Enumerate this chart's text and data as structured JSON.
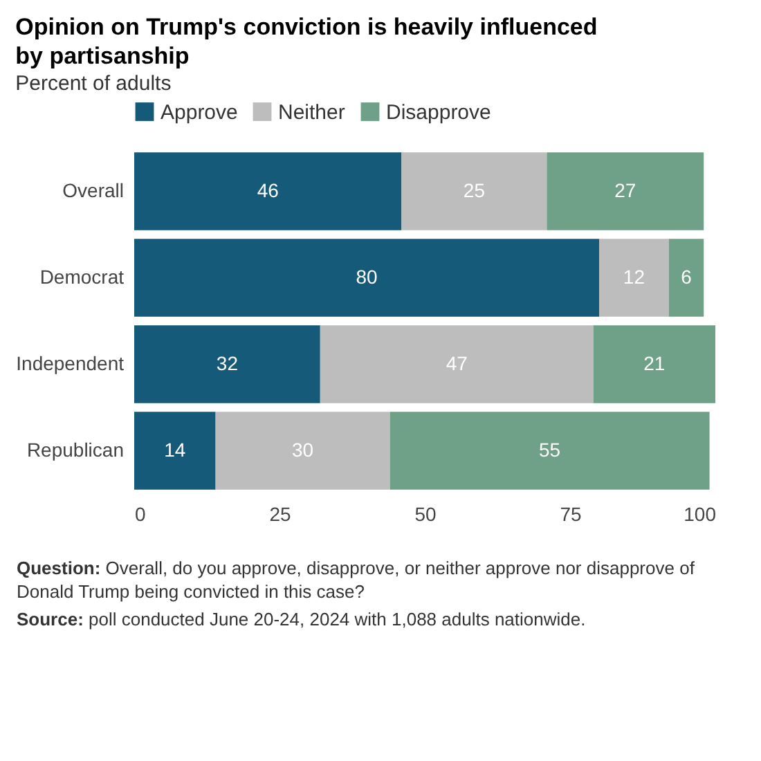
{
  "chart_data": {
    "type": "bar",
    "orientation": "horizontal",
    "stacked": true,
    "title": "Opinion on Trump's conviction is heavily influenced by partisanship",
    "subtitle": "Percent of adults",
    "categories": [
      "Overall",
      "Democrat",
      "Independent",
      "Republican"
    ],
    "series": [
      {
        "name": "Approve",
        "color": "#165a7a",
        "values": [
          46,
          80,
          32,
          14
        ]
      },
      {
        "name": "Neither",
        "color": "#bdbdbd",
        "values": [
          25,
          12,
          47,
          30
        ]
      },
      {
        "name": "Disapprove",
        "color": "#6fa088",
        "values": [
          27,
          6,
          21,
          55
        ]
      }
    ],
    "xlim": [
      0,
      100
    ],
    "xticks": [
      0,
      25,
      50,
      75,
      100
    ],
    "grid": false,
    "legend": "top",
    "data_labels": true,
    "annotations": [
      "Question: Overall, do you approve, disapprove, or neither approve nor disapprove of Donald Trump being convicted in this case?",
      "Source: poll conducted June 20-24, 2024 with 1,088 adults nationwide."
    ]
  }
}
